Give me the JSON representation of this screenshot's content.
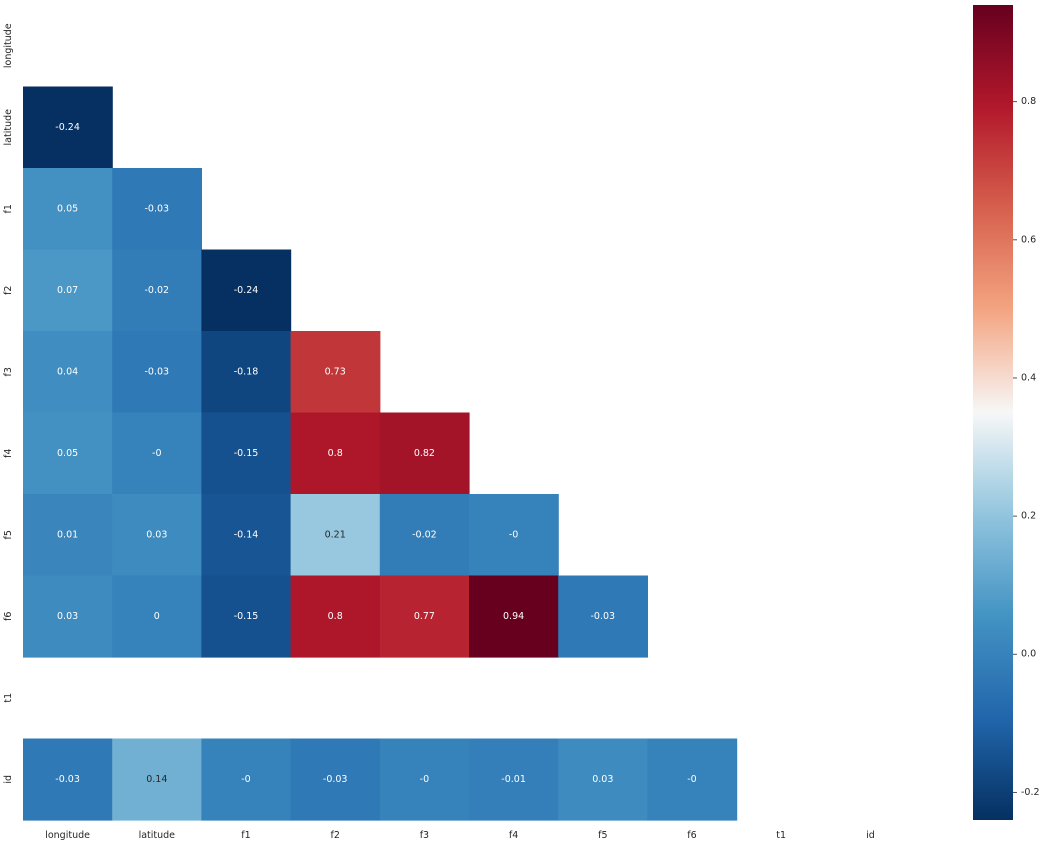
{
  "chart_data": {
    "type": "heatmap",
    "title": "",
    "xlabel": "",
    "ylabel": "",
    "x_labels": [
      "longitude",
      "latitude",
      "f1",
      "f2",
      "f3",
      "f4",
      "f5",
      "f6",
      "t1",
      "id"
    ],
    "y_labels": [
      "longitude",
      "latitude",
      "f1",
      "f2",
      "f3",
      "f4",
      "f5",
      "f6",
      "t1",
      "id"
    ],
    "mask": "upper-triangle-including-diagonal",
    "annotations_shown": true,
    "colormap": "RdBu_r",
    "colorbar": {
      "vmin": -0.24,
      "vmax": 0.94,
      "ticks": [
        -0.2,
        0.0,
        0.2,
        0.4,
        0.6,
        0.8
      ],
      "tick_labels": [
        "-0.2",
        "0.0",
        "0.2",
        "0.4",
        "0.6",
        "0.8"
      ]
    },
    "cells": [
      {
        "row": "latitude",
        "col": "longitude",
        "value": -0.24,
        "label": "-0.24"
      },
      {
        "row": "f1",
        "col": "longitude",
        "value": 0.05,
        "label": "0.05"
      },
      {
        "row": "f1",
        "col": "latitude",
        "value": -0.03,
        "label": "-0.03"
      },
      {
        "row": "f2",
        "col": "longitude",
        "value": 0.07,
        "label": "0.07"
      },
      {
        "row": "f2",
        "col": "latitude",
        "value": -0.02,
        "label": "-0.02"
      },
      {
        "row": "f2",
        "col": "f1",
        "value": -0.24,
        "label": "-0.24"
      },
      {
        "row": "f3",
        "col": "longitude",
        "value": 0.04,
        "label": "0.04"
      },
      {
        "row": "f3",
        "col": "latitude",
        "value": -0.03,
        "label": "-0.03"
      },
      {
        "row": "f3",
        "col": "f1",
        "value": -0.18,
        "label": "-0.18"
      },
      {
        "row": "f3",
        "col": "f2",
        "value": 0.73,
        "label": "0.73"
      },
      {
        "row": "f4",
        "col": "longitude",
        "value": 0.05,
        "label": "0.05"
      },
      {
        "row": "f4",
        "col": "latitude",
        "value": 0.0,
        "label": "-0"
      },
      {
        "row": "f4",
        "col": "f1",
        "value": -0.15,
        "label": "-0.15"
      },
      {
        "row": "f4",
        "col": "f2",
        "value": 0.8,
        "label": "0.8"
      },
      {
        "row": "f4",
        "col": "f3",
        "value": 0.82,
        "label": "0.82"
      },
      {
        "row": "f5",
        "col": "longitude",
        "value": 0.01,
        "label": "0.01"
      },
      {
        "row": "f5",
        "col": "latitude",
        "value": 0.03,
        "label": "0.03"
      },
      {
        "row": "f5",
        "col": "f1",
        "value": -0.14,
        "label": "-0.14"
      },
      {
        "row": "f5",
        "col": "f2",
        "value": 0.21,
        "label": "0.21"
      },
      {
        "row": "f5",
        "col": "f3",
        "value": -0.02,
        "label": "-0.02"
      },
      {
        "row": "f5",
        "col": "f4",
        "value": 0.0,
        "label": "-0"
      },
      {
        "row": "f6",
        "col": "longitude",
        "value": 0.03,
        "label": "0.03"
      },
      {
        "row": "f6",
        "col": "latitude",
        "value": 0.0,
        "label": "0"
      },
      {
        "row": "f6",
        "col": "f1",
        "value": -0.15,
        "label": "-0.15"
      },
      {
        "row": "f6",
        "col": "f2",
        "value": 0.8,
        "label": "0.8"
      },
      {
        "row": "f6",
        "col": "f3",
        "value": 0.77,
        "label": "0.77"
      },
      {
        "row": "f6",
        "col": "f4",
        "value": 0.94,
        "label": "0.94"
      },
      {
        "row": "f6",
        "col": "f5",
        "value": -0.03,
        "label": "-0.03"
      },
      {
        "row": "id",
        "col": "longitude",
        "value": -0.03,
        "label": "-0.03"
      },
      {
        "row": "id",
        "col": "latitude",
        "value": 0.14,
        "label": "0.14"
      },
      {
        "row": "id",
        "col": "f1",
        "value": 0.0,
        "label": "-0"
      },
      {
        "row": "id",
        "col": "f2",
        "value": -0.03,
        "label": "-0.03"
      },
      {
        "row": "id",
        "col": "f3",
        "value": 0.0,
        "label": "-0"
      },
      {
        "row": "id",
        "col": "f4",
        "value": -0.01,
        "label": "-0.01"
      },
      {
        "row": "id",
        "col": "f5",
        "value": 0.03,
        "label": "0.03"
      },
      {
        "row": "id",
        "col": "f6",
        "value": 0.0,
        "label": "-0"
      }
    ]
  }
}
